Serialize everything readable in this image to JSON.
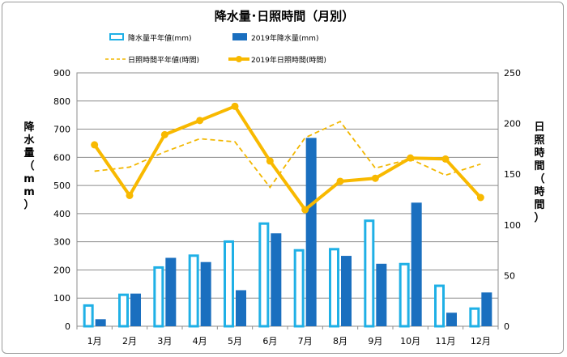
{
  "chart_data": {
    "type": "bar",
    "title": "降水量･日照時間（月別）",
    "categories": [
      "1月",
      "2月",
      "3月",
      "4月",
      "5月",
      "6月",
      "7月",
      "8月",
      "9月",
      "10月",
      "11月",
      "12月"
    ],
    "y_left": {
      "label": "降水量（mm）",
      "ylim": [
        0,
        900
      ],
      "ticks": [
        "0",
        "100",
        "200",
        "300",
        "400",
        "500",
        "600",
        "700",
        "800",
        "900"
      ]
    },
    "y_right": {
      "label": "日照時間（時間）",
      "ylim": [
        0,
        250
      ],
      "ticks": [
        "0",
        "50",
        "100",
        "150",
        "200",
        "250"
      ]
    },
    "series": [
      {
        "name": "降水量平年値(mm)",
        "kind": "bar-outline",
        "axis": "left",
        "color": "#1fb0e6",
        "values": [
          78,
          116,
          213,
          255,
          305,
          369,
          274,
          278,
          379,
          225,
          148,
          67
        ]
      },
      {
        "name": "2019年降水量(mm)",
        "kind": "bar",
        "axis": "left",
        "color": "#1a6fbf",
        "values": [
          25,
          116,
          243,
          228,
          128,
          330,
          669,
          250,
          222,
          439,
          48,
          120
        ]
      },
      {
        "name": "日照時間平年値(時間)",
        "kind": "line-dashed",
        "axis": "right",
        "color": "#f2b700",
        "values": [
          153,
          157,
          172,
          185,
          182,
          137,
          186,
          202,
          156,
          165,
          149,
          160
        ]
      },
      {
        "name": "2019年日照時間(時間)",
        "kind": "line",
        "axis": "right",
        "color": "#f8b900",
        "values": [
          179,
          129,
          189,
          203,
          217,
          163,
          115,
          143,
          146,
          166,
          165,
          127
        ]
      }
    ],
    "legend": "top",
    "grid": true
  }
}
